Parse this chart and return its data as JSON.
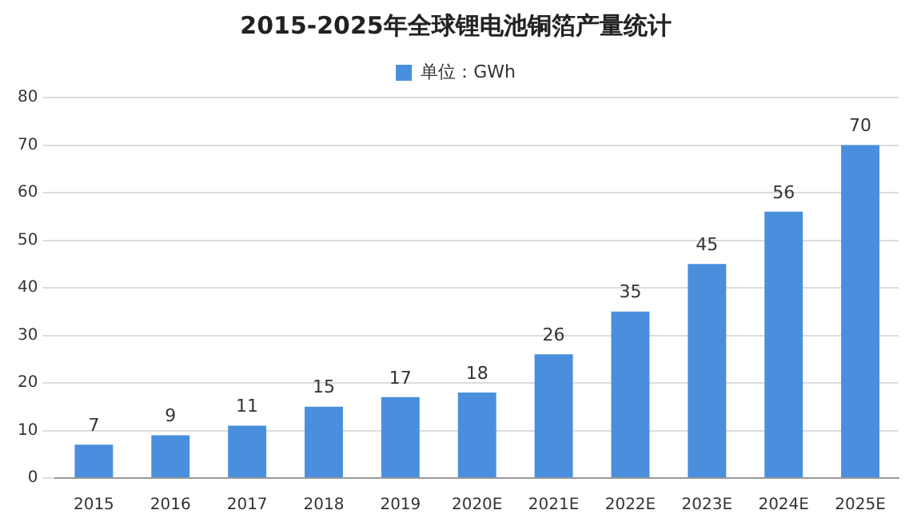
{
  "chart_data": {
    "type": "bar",
    "title": "2015-2025年全球锂电池铜箔产量统计",
    "categories": [
      "2015",
      "2016",
      "2017",
      "2018",
      "2019",
      "2020E",
      "2021E",
      "2022E",
      "2023E",
      "2024E",
      "2025E"
    ],
    "series": [
      {
        "name": "单位：GWh",
        "color": "#4a8fdd",
        "values": [
          7,
          9,
          11,
          15,
          17,
          18,
          26,
          35,
          45,
          56,
          70
        ]
      }
    ],
    "ylim": [
      0,
      80
    ],
    "yticks": [
      0,
      10,
      20,
      30,
      40,
      50,
      60,
      70,
      80
    ],
    "grid": "y",
    "legend": "top",
    "data_labels": true
  }
}
